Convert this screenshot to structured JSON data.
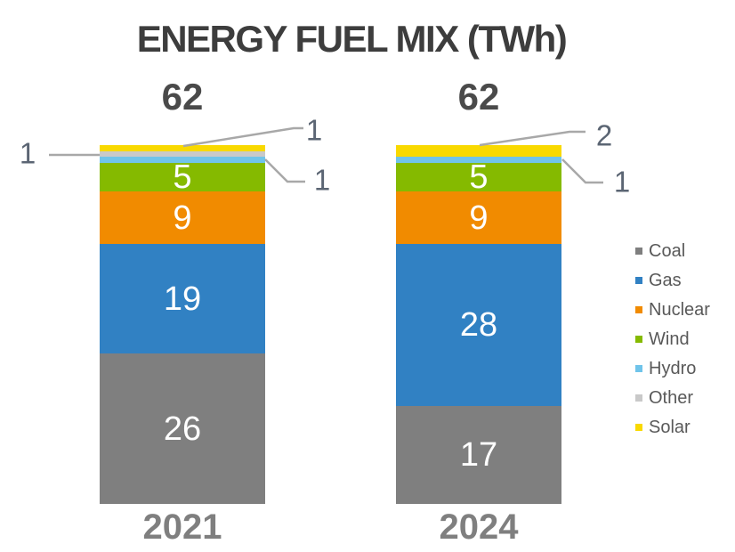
{
  "title": "ENERGY FUEL MIX (TWh)",
  "chart_data": {
    "type": "bar",
    "stacked": true,
    "unit": "TWh",
    "title": "ENERGY FUEL MIX (TWh)",
    "categories": [
      "2021",
      "2024"
    ],
    "totals": [
      62,
      62
    ],
    "series": [
      {
        "name": "Coal",
        "color": "#7f7f7f",
        "values": [
          26,
          17
        ]
      },
      {
        "name": "Gas",
        "color": "#3181c3",
        "values": [
          19,
          28
        ]
      },
      {
        "name": "Nuclear",
        "color": "#f18b00",
        "values": [
          9,
          9
        ]
      },
      {
        "name": "Wind",
        "color": "#85ba00",
        "values": [
          5,
          5
        ]
      },
      {
        "name": "Hydro",
        "color": "#70c4ea",
        "values": [
          1,
          1
        ]
      },
      {
        "name": "Other",
        "color": "#c9c9c9",
        "values": [
          1,
          0
        ]
      },
      {
        "name": "Solar",
        "color": "#f9d900",
        "values": [
          1,
          2
        ]
      }
    ],
    "value_label_threshold": 5,
    "legend_position": "right",
    "grid": false,
    "callouts": [
      {
        "category": "2021",
        "series": "Other",
        "label": "1"
      },
      {
        "category": "2021",
        "series": "Solar",
        "label": "1"
      },
      {
        "category": "2021",
        "series": "Hydro",
        "label": "1"
      },
      {
        "category": "2024",
        "series": "Solar",
        "label": "2"
      },
      {
        "category": "2024",
        "series": "Hydro",
        "label": "1"
      }
    ]
  },
  "colors": {
    "title": "#3d3d3d",
    "total_label": "#4a4a4a",
    "year_label": "#7f7f7f",
    "callout_text": "#5b6573",
    "leader_line": "#a8a8a8",
    "legend_text": "#595959",
    "value_label": "#ffffff"
  }
}
